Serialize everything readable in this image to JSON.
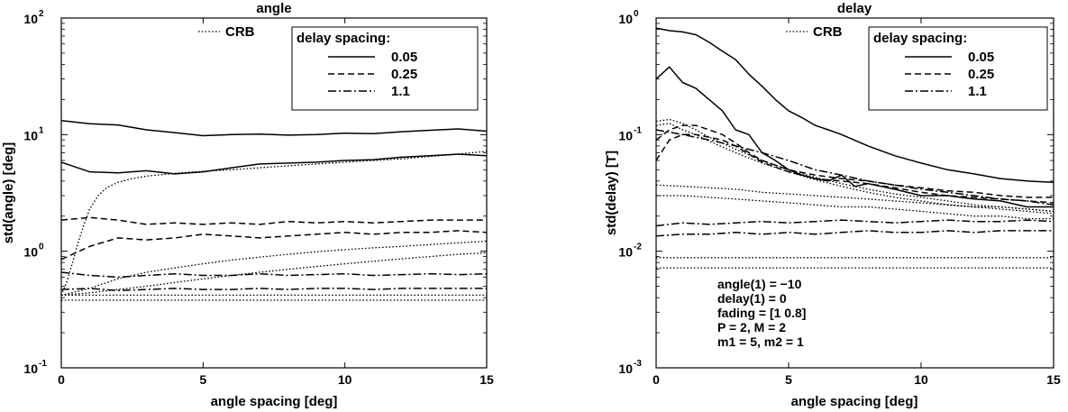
{
  "chart_data": [
    {
      "type": "line",
      "title": "angle",
      "xlabel": "angle spacing [deg]",
      "ylabel": "std(angle) [deg]",
      "yscale": "log",
      "xlim": [
        0,
        15
      ],
      "ylim": [
        0.1,
        100
      ],
      "xticks": [
        0,
        5,
        10,
        15
      ],
      "yticks": [
        {
          "base": "10",
          "exp": "-1"
        },
        {
          "base": "10",
          "exp": "0"
        },
        {
          "base": "10",
          "exp": "1"
        },
        {
          "base": "10",
          "exp": "2"
        }
      ],
      "grid": false,
      "legend": {
        "title": "delay spacing:",
        "entries": [
          {
            "label": "0.05",
            "dash": "solid"
          },
          {
            "label": "0.25",
            "dash": "dashed"
          },
          {
            "label": "1.1",
            "dash": "dashdot"
          }
        ],
        "crb_label": "CRB",
        "crb_dash": "dotted"
      },
      "annotation_lines": [],
      "series": [
        {
          "dash": "solid",
          "x": [
            0,
            1,
            2,
            3,
            4,
            5,
            6,
            7,
            8,
            9,
            10,
            11,
            12,
            13,
            14,
            15
          ],
          "y": [
            13.2,
            12.4,
            12.1,
            11.0,
            10.4,
            9.8,
            10.0,
            10.1,
            9.9,
            10.0,
            10.3,
            10.2,
            10.6,
            10.9,
            11.2,
            10.7
          ]
        },
        {
          "dash": "solid",
          "x": [
            0,
            1,
            2,
            3,
            4,
            5,
            6,
            7,
            8,
            9,
            10,
            11,
            12,
            13,
            14,
            15
          ],
          "y": [
            5.8,
            4.8,
            4.7,
            4.9,
            4.6,
            4.8,
            5.2,
            5.6,
            5.7,
            5.8,
            6.0,
            6.1,
            6.4,
            6.6,
            6.8,
            6.6
          ]
        },
        {
          "dash": "dashed",
          "x": [
            0,
            1,
            2,
            3,
            4,
            5,
            6,
            7,
            8,
            9,
            10,
            11,
            12,
            13,
            14,
            15
          ],
          "y": [
            1.85,
            1.95,
            1.85,
            1.7,
            1.75,
            1.7,
            1.75,
            1.7,
            1.8,
            1.75,
            1.8,
            1.75,
            1.8,
            1.85,
            1.85,
            1.85
          ]
        },
        {
          "dash": "dashed",
          "x": [
            0,
            1,
            2,
            3,
            4,
            5,
            6,
            7,
            8,
            9,
            10,
            11,
            12,
            13,
            14,
            15
          ],
          "y": [
            0.85,
            1.1,
            1.3,
            1.25,
            1.3,
            1.4,
            1.35,
            1.3,
            1.35,
            1.4,
            1.45,
            1.4,
            1.45,
            1.45,
            1.5,
            1.45
          ]
        },
        {
          "dash": "dashdot",
          "x": [
            0,
            1,
            2,
            3,
            4,
            5,
            6,
            7,
            8,
            9,
            10,
            11,
            12,
            13,
            14,
            15
          ],
          "y": [
            0.66,
            0.62,
            0.6,
            0.62,
            0.64,
            0.62,
            0.62,
            0.64,
            0.62,
            0.63,
            0.64,
            0.62,
            0.63,
            0.64,
            0.63,
            0.64
          ]
        },
        {
          "dash": "dashdot",
          "x": [
            0,
            1,
            2,
            3,
            4,
            5,
            6,
            7,
            8,
            9,
            10,
            11,
            12,
            13,
            14,
            15
          ],
          "y": [
            0.47,
            0.48,
            0.46,
            0.47,
            0.48,
            0.47,
            0.47,
            0.48,
            0.47,
            0.48,
            0.48,
            0.47,
            0.48,
            0.48,
            0.48,
            0.48
          ]
        },
        {
          "dash": "dotted",
          "x": [
            0,
            0.2,
            0.4,
            0.6,
            0.8,
            1.0,
            1.3,
            1.6,
            2,
            2.5,
            3,
            4,
            5,
            6,
            7,
            8,
            9,
            10,
            11,
            12,
            13,
            14,
            15
          ],
          "y": [
            0.42,
            0.55,
            0.8,
            1.2,
            1.7,
            2.3,
            3.0,
            3.5,
            3.9,
            4.2,
            4.4,
            4.65,
            4.85,
            5.0,
            5.2,
            5.4,
            5.6,
            5.8,
            6.0,
            6.2,
            6.5,
            6.8,
            7.2
          ]
        },
        {
          "dash": "dotted",
          "x": [
            0,
            1,
            2,
            3,
            4,
            5,
            6,
            7,
            8,
            9,
            10,
            11,
            12,
            13,
            14,
            15
          ],
          "y": [
            0.42,
            0.48,
            0.58,
            0.66,
            0.72,
            0.78,
            0.84,
            0.89,
            0.94,
            0.99,
            1.03,
            1.07,
            1.1,
            1.14,
            1.18,
            1.22
          ]
        },
        {
          "dash": "dotted",
          "x": [
            0,
            1,
            2,
            3,
            4,
            5,
            6,
            7,
            8,
            9,
            10,
            11,
            12,
            13,
            14,
            15
          ],
          "y": [
            0.42,
            0.44,
            0.47,
            0.5,
            0.54,
            0.58,
            0.62,
            0.66,
            0.7,
            0.74,
            0.78,
            0.82,
            0.86,
            0.9,
            0.94,
            0.97
          ]
        },
        {
          "dash": "dotted",
          "x": [
            0,
            1,
            2,
            3,
            4,
            5,
            6,
            7,
            8,
            9,
            10,
            11,
            12,
            13,
            14,
            15
          ],
          "y": [
            0.42,
            0.42,
            0.42,
            0.42,
            0.42,
            0.42,
            0.42,
            0.42,
            0.42,
            0.42,
            0.42,
            0.42,
            0.42,
            0.42,
            0.42,
            0.42
          ]
        },
        {
          "dash": "dotted",
          "x": [
            0,
            1,
            2,
            3,
            4,
            5,
            6,
            7,
            8,
            9,
            10,
            11,
            12,
            13,
            14,
            15
          ],
          "y": [
            0.38,
            0.38,
            0.38,
            0.38,
            0.38,
            0.38,
            0.38,
            0.38,
            0.38,
            0.38,
            0.38,
            0.38,
            0.38,
            0.38,
            0.38,
            0.38
          ]
        }
      ]
    },
    {
      "type": "line",
      "title": "delay",
      "xlabel": "angle spacing [deg]",
      "ylabel": "std(delay) [T]",
      "yscale": "log",
      "xlim": [
        0,
        15
      ],
      "ylim": [
        0.001,
        1
      ],
      "xticks": [
        0,
        5,
        10,
        15
      ],
      "yticks": [
        {
          "base": "10",
          "exp": "-3"
        },
        {
          "base": "10",
          "exp": "-2"
        },
        {
          "base": "10",
          "exp": "-1"
        },
        {
          "base": "10",
          "exp": "0"
        }
      ],
      "grid": false,
      "legend": {
        "title": "delay spacing:",
        "entries": [
          {
            "label": "0.05",
            "dash": "solid"
          },
          {
            "label": "0.25",
            "dash": "dashed"
          },
          {
            "label": "1.1",
            "dash": "dashdot"
          }
        ],
        "crb_label": "CRB",
        "crb_dash": "dotted"
      },
      "annotation_lines": [
        "angle(1) = −10",
        "delay(1) = 0",
        "fading = [1 0.8]",
        "P = 2, M = 2",
        "m1 = 5, m2 = 1"
      ],
      "series": [
        {
          "dash": "solid",
          "x": [
            0,
            0.5,
            1,
            1.5,
            2,
            2.5,
            3,
            3.5,
            4,
            4.5,
            5,
            5.5,
            6,
            6.5,
            7,
            8,
            9,
            10,
            11,
            12,
            13,
            14,
            15
          ],
          "y": [
            0.82,
            0.78,
            0.76,
            0.72,
            0.62,
            0.52,
            0.44,
            0.33,
            0.26,
            0.2,
            0.16,
            0.14,
            0.12,
            0.11,
            0.1,
            0.08,
            0.066,
            0.057,
            0.05,
            0.046,
            0.042,
            0.04,
            0.039
          ]
        },
        {
          "dash": "solid",
          "x": [
            0,
            0.5,
            1,
            1.5,
            2,
            2.5,
            3,
            3.5,
            4,
            4.5,
            5,
            5.5,
            6,
            6.5,
            7,
            7.5,
            8,
            9,
            10,
            11,
            12,
            13,
            14,
            15
          ],
          "y": [
            0.3,
            0.38,
            0.28,
            0.25,
            0.2,
            0.16,
            0.11,
            0.1,
            0.07,
            0.06,
            0.05,
            0.045,
            0.042,
            0.04,
            0.045,
            0.036,
            0.038,
            0.034,
            0.03,
            0.03,
            0.028,
            0.027,
            0.024,
            0.024
          ]
        },
        {
          "dash": "dashed",
          "x": [
            0,
            0.5,
            1,
            1.5,
            2,
            2.5,
            3,
            3.5,
            4,
            5,
            6,
            7,
            8,
            9,
            10,
            11,
            12,
            13,
            14,
            15
          ],
          "y": [
            0.09,
            0.11,
            0.12,
            0.12,
            0.11,
            0.1,
            0.085,
            0.07,
            0.06,
            0.05,
            0.045,
            0.042,
            0.04,
            0.037,
            0.035,
            0.033,
            0.032,
            0.03,
            0.029,
            0.029
          ]
        },
        {
          "dash": "dashed",
          "x": [
            0,
            0.5,
            1,
            1.5,
            2,
            2.5,
            3,
            3.5,
            4,
            5,
            6,
            7,
            8,
            9,
            10,
            11,
            12,
            13,
            14,
            15
          ],
          "y": [
            0.06,
            0.09,
            0.1,
            0.1,
            0.095,
            0.09,
            0.08,
            0.068,
            0.058,
            0.048,
            0.042,
            0.04,
            0.038,
            0.035,
            0.032,
            0.03,
            0.029,
            0.028,
            0.027,
            0.026
          ]
        },
        {
          "dash": "dashdot",
          "x": [
            0,
            1,
            2,
            3,
            4,
            5,
            6,
            7,
            8,
            9,
            10,
            11,
            12,
            13,
            14,
            15
          ],
          "y": [
            0.11,
            0.1,
            0.09,
            0.08,
            0.07,
            0.06,
            0.05,
            0.045,
            0.04,
            0.037,
            0.034,
            0.032,
            0.03,
            0.028,
            0.027,
            0.025
          ]
        },
        {
          "dash": "dashdot",
          "x": [
            0,
            1,
            2,
            3,
            4,
            5,
            6,
            7,
            8,
            9,
            10,
            11,
            12,
            13,
            14,
            15
          ],
          "y": [
            0.0165,
            0.0175,
            0.017,
            0.0175,
            0.018,
            0.0175,
            0.018,
            0.0185,
            0.018,
            0.0175,
            0.018,
            0.0185,
            0.018,
            0.018,
            0.0185,
            0.018
          ]
        },
        {
          "dash": "dashdot",
          "x": [
            0,
            1,
            2,
            3,
            4,
            5,
            6,
            7,
            8,
            9,
            10,
            11,
            12,
            13,
            14,
            15
          ],
          "y": [
            0.0135,
            0.014,
            0.014,
            0.0145,
            0.014,
            0.0145,
            0.014,
            0.0145,
            0.015,
            0.0145,
            0.0145,
            0.015,
            0.0145,
            0.015,
            0.015,
            0.015
          ]
        },
        {
          "dash": "dotted",
          "x": [
            0,
            0.5,
            1,
            1.5,
            2,
            3,
            4,
            5,
            6,
            7,
            8,
            9,
            10,
            11,
            12,
            13,
            14,
            15
          ],
          "y": [
            0.13,
            0.135,
            0.125,
            0.11,
            0.095,
            0.075,
            0.06,
            0.05,
            0.043,
            0.038,
            0.034,
            0.031,
            0.029,
            0.027,
            0.025,
            0.024,
            0.023,
            0.022
          ]
        },
        {
          "dash": "dotted",
          "x": [
            0,
            0.5,
            1,
            1.5,
            2,
            3,
            4,
            5,
            6,
            7,
            8,
            9,
            10,
            11,
            12,
            13,
            14,
            15
          ],
          "y": [
            0.12,
            0.125,
            0.11,
            0.1,
            0.088,
            0.07,
            0.057,
            0.048,
            0.041,
            0.036,
            0.032,
            0.029,
            0.027,
            0.025,
            0.024,
            0.023,
            0.022,
            0.021
          ]
        },
        {
          "dash": "dotted",
          "x": [
            0,
            1,
            2,
            3,
            4,
            5,
            6,
            7,
            8,
            9,
            10,
            11,
            12,
            13,
            14,
            15
          ],
          "y": [
            0.037,
            0.036,
            0.035,
            0.034,
            0.032,
            0.031,
            0.03,
            0.029,
            0.028,
            0.027,
            0.026,
            0.025,
            0.024,
            0.024,
            0.023,
            0.022
          ]
        },
        {
          "dash": "dotted",
          "x": [
            0,
            1,
            2,
            3,
            4,
            5,
            6,
            7,
            8,
            9,
            10,
            11,
            12,
            13,
            14,
            15
          ],
          "y": [
            0.03,
            0.03,
            0.029,
            0.028,
            0.027,
            0.026,
            0.025,
            0.024,
            0.024,
            0.023,
            0.022,
            0.021,
            0.02,
            0.02,
            0.019,
            0.019
          ]
        },
        {
          "dash": "dotted",
          "x": [
            0,
            15
          ],
          "y": [
            0.0088,
            0.0088
          ]
        },
        {
          "dash": "dotted",
          "x": [
            0,
            15
          ],
          "y": [
            0.0072,
            0.0072
          ]
        }
      ]
    }
  ]
}
